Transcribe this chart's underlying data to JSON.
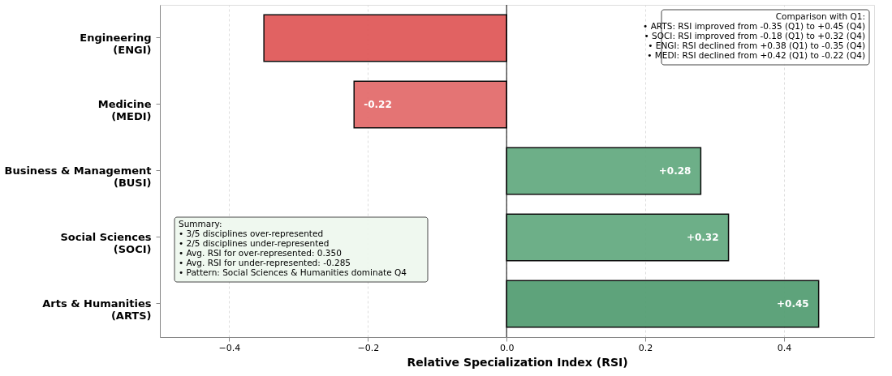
{
  "chart_data": {
    "type": "bar",
    "orientation": "horizontal",
    "xlabel": "Relative Specialization Index (RSI)",
    "categories": [
      "Engineering\n(ENGI)",
      "Medicine\n(MEDI)",
      "Business & Management\n(BUSI)",
      "Social Sciences\n(SOCI)",
      "Arts & Humanities\n(ARTS)"
    ],
    "values": [
      -0.35,
      -0.22,
      0.28,
      0.32,
      0.45
    ],
    "colors": [
      "#e05a5a",
      "#e36d6d",
      "#66ab82",
      "#66ab82",
      "#569f74"
    ],
    "value_labels": [
      null,
      "-0.22",
      "+0.28",
      "+0.32",
      "+0.45"
    ],
    "xlim": [
      -0.5,
      0.53
    ],
    "xticks": [
      {
        "value": -0.4,
        "label": "−0.4"
      },
      {
        "value": -0.2,
        "label": "−0.2"
      },
      {
        "value": 0.0,
        "label": "0.0"
      },
      {
        "value": 0.2,
        "label": "0.2"
      },
      {
        "value": 0.4,
        "label": "0.4"
      }
    ],
    "grid": "x",
    "ref_lines": [
      {
        "axis": "x",
        "value": 0,
        "color": "#000000"
      }
    ],
    "annotations": [
      "Summary:\n• 3/5 disciplines over-represented\n• 2/5 disciplines under-represented\n• Avg. RSI for over-represented: 0.350\n• Avg. RSI for under-represented: -0.285\n• Pattern: Social Sciences & Humanities dominate Q4",
      "Comparison with Q1:\n• ARTS: RSI improved from -0.35 (Q1) to +0.45 (Q4)\n• SOCI: RSI improved from -0.18 (Q1) to +0.32 (Q4)\n• ENGI: RSI declined from +0.38 (Q1) to -0.35 (Q4)\n• MEDI: RSI declined from +0.42 (Q1) to -0.22 (Q4)"
    ]
  }
}
